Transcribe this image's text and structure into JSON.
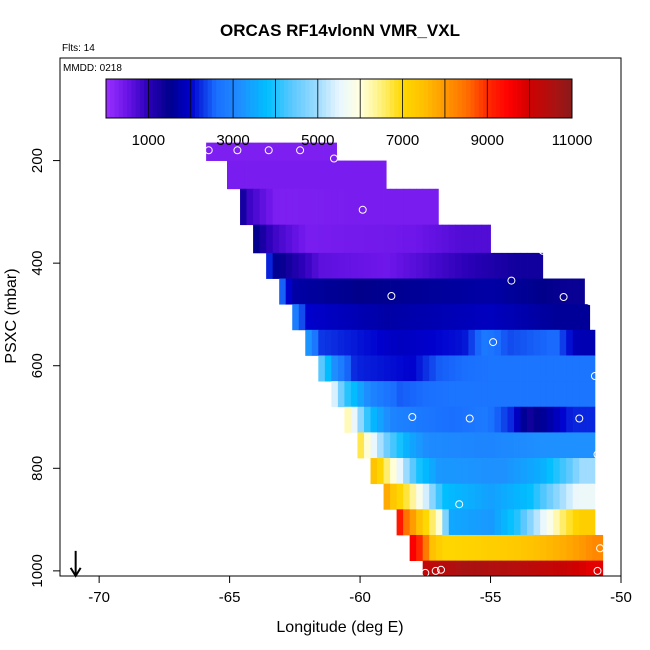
{
  "chart_data": {
    "type": "heatmap",
    "title": "ORCAS RF14vlonN VMR_VXL",
    "annotations": {
      "flights": "Flts: 14",
      "date": "MMDD: 0218"
    },
    "xlabel": "Longitude (deg E)",
    "ylabel": "PSXC (mbar)",
    "xlim": [
      -71.5,
      -50
    ],
    "ylim": [
      1010,
      0
    ],
    "x_ticks": [
      -70,
      -65,
      -60,
      -55,
      -50
    ],
    "x_tick_labels": [
      "-70",
      "-65",
      "-60",
      "-55",
      "-50"
    ],
    "y_ticks": [
      200,
      400,
      600,
      800,
      1000
    ],
    "y_tick_labels": [
      "200",
      "400",
      "600",
      "800",
      "1000"
    ],
    "colorbar": {
      "min": 0,
      "max": 11000,
      "ticks": [
        1000,
        3000,
        5000,
        7000,
        9000,
        11000
      ],
      "tick_labels": [
        "1000",
        "3000",
        "5000",
        "7000",
        "9000",
        "11000"
      ],
      "stops": [
        [
          0,
          "#9b30ff"
        ],
        [
          500,
          "#6a14e8"
        ],
        [
          1000,
          "#2b00b8"
        ],
        [
          1500,
          "#00008b"
        ],
        [
          2000,
          "#0000cd"
        ],
        [
          2600,
          "#1a6fff"
        ],
        [
          3200,
          "#1e90ff"
        ],
        [
          3800,
          "#00bfff"
        ],
        [
          4400,
          "#5cc8ff"
        ],
        [
          5000,
          "#9fdcff"
        ],
        [
          5500,
          "#e8f6ff"
        ],
        [
          6000,
          "#ffffe0"
        ],
        [
          6500,
          "#fff07a"
        ],
        [
          7000,
          "#ffd700"
        ],
        [
          7500,
          "#ffc000"
        ],
        [
          8000,
          "#ff9800"
        ],
        [
          8500,
          "#ff7000"
        ],
        [
          9000,
          "#ff2a00"
        ],
        [
          9500,
          "#ff0000"
        ],
        [
          10000,
          "#d00000"
        ],
        [
          10500,
          "#b01010"
        ],
        [
          11000,
          "#8b1a1a"
        ]
      ]
    },
    "rows": [
      {
        "p_top": 165,
        "p_bot": 200,
        "x0": -65.9,
        "x1": -60.9,
        "seg": [
          [
            -65.9,
            300
          ]
        ]
      },
      {
        "p_top": 200,
        "p_bot": 255,
        "x0": -65.1,
        "x1": -59.0,
        "seg": [
          [
            -65.1,
            350
          ]
        ]
      },
      {
        "p_top": 255,
        "p_bot": 325,
        "x0": -64.6,
        "x1": -57.0,
        "seg": [
          [
            -64.6,
            1500
          ],
          [
            -64.3,
            900
          ],
          [
            -63.2,
            300
          ],
          [
            -60.0,
            350
          ]
        ]
      },
      {
        "p_top": 325,
        "p_bot": 380,
        "x0": -64.1,
        "x1": -55.0,
        "seg": [
          [
            -64.1,
            1600
          ],
          [
            -63.4,
            900
          ],
          [
            -62.0,
            350
          ],
          [
            -58.0,
            450
          ],
          [
            -56.0,
            700
          ]
        ]
      },
      {
        "p_top": 380,
        "p_bot": 430,
        "x0": -63.6,
        "x1": -53.0,
        "seg": [
          [
            -63.6,
            2600
          ],
          [
            -63.3,
            1600
          ],
          [
            -61.5,
            600
          ],
          [
            -59.0,
            450
          ],
          [
            -56.5,
            900
          ],
          [
            -54.0,
            1300
          ]
        ]
      },
      {
        "p_top": 430,
        "p_bot": 480,
        "x0": -63.1,
        "x1": -51.4,
        "seg": [
          [
            -63.1,
            2800
          ],
          [
            -62.6,
            1700
          ],
          [
            -60.0,
            1500
          ],
          [
            -55.0,
            1700
          ],
          [
            -52.0,
            1400
          ]
        ]
      },
      {
        "p_top": 480,
        "p_bot": 530,
        "x0": -62.6,
        "x1": -51.2,
        "seg": [
          [
            -62.6,
            3100
          ],
          [
            -62.0,
            2000
          ],
          [
            -59.0,
            1700
          ],
          [
            -55.0,
            1900
          ],
          [
            -52.5,
            1600
          ]
        ]
      },
      {
        "p_top": 530,
        "p_bot": 580,
        "x0": -62.1,
        "x1": -51.0,
        "seg": [
          [
            -62.1,
            3500
          ],
          [
            -61.5,
            2300
          ],
          [
            -58.5,
            1900
          ],
          [
            -56.0,
            2100
          ],
          [
            -55.2,
            2800
          ],
          [
            -54.3,
            2400
          ],
          [
            -52.5,
            2600
          ],
          [
            -51.7,
            1800
          ]
        ]
      },
      {
        "p_top": 580,
        "p_bot": 630,
        "x0": -61.6,
        "x1": -51.0,
        "seg": [
          [
            -61.6,
            4700
          ],
          [
            -61.0,
            3200
          ],
          [
            -60.2,
            2200
          ],
          [
            -58.0,
            2000
          ],
          [
            -57.0,
            2500
          ],
          [
            -55.0,
            2700
          ]
        ]
      },
      {
        "p_top": 630,
        "p_bot": 680,
        "x0": -61.1,
        "x1": -51.0,
        "seg": [
          [
            -61.1,
            5800
          ],
          [
            -60.6,
            4200
          ],
          [
            -59.6,
            3000
          ],
          [
            -58.5,
            2500
          ],
          [
            -56.5,
            2700
          ]
        ]
      },
      {
        "p_top": 680,
        "p_bot": 730,
        "x0": -60.6,
        "x1": -51.0,
        "seg": [
          [
            -60.6,
            6500
          ],
          [
            -60.2,
            5500
          ],
          [
            -59.6,
            3800
          ],
          [
            -58.8,
            3000
          ],
          [
            -57.8,
            2800
          ],
          [
            -56.5,
            2600
          ],
          [
            -55.2,
            2800
          ],
          [
            -54.2,
            2200
          ],
          [
            -53.5,
            1300
          ],
          [
            -51.9,
            2200
          ]
        ]
      },
      {
        "p_top": 730,
        "p_bot": 780,
        "x0": -60.1,
        "x1": -51.0,
        "seg": [
          [
            -60.1,
            7000
          ],
          [
            -59.7,
            6000
          ],
          [
            -59.0,
            4600
          ],
          [
            -58.2,
            3600
          ],
          [
            -57.4,
            3100
          ],
          [
            -55.0,
            3000
          ],
          [
            -53.0,
            3200
          ]
        ]
      },
      {
        "p_top": 780,
        "p_bot": 830,
        "x0": -59.6,
        "x1": -51.0,
        "seg": [
          [
            -59.6,
            7600
          ],
          [
            -59.2,
            7000
          ],
          [
            -58.6,
            5800
          ],
          [
            -57.8,
            4000
          ],
          [
            -57.0,
            3300
          ],
          [
            -54.5,
            3200
          ],
          [
            -53.0,
            3600
          ],
          [
            -52.0,
            4400
          ],
          [
            -51.5,
            5000
          ]
        ]
      },
      {
        "p_top": 830,
        "p_bot": 880,
        "x0": -59.1,
        "x1": -51.0,
        "seg": [
          [
            -59.1,
            8000
          ],
          [
            -58.7,
            7300
          ],
          [
            -58.1,
            6600
          ],
          [
            -57.4,
            5200
          ],
          [
            -56.8,
            3800
          ],
          [
            -55.0,
            3400
          ],
          [
            -53.5,
            3800
          ],
          [
            -52.5,
            4800
          ],
          [
            -51.7,
            5600
          ]
        ]
      },
      {
        "p_top": 880,
        "p_bot": 930,
        "x0": -58.6,
        "x1": -51.0,
        "seg": [
          [
            -58.6,
            9600
          ],
          [
            -58.2,
            8400
          ],
          [
            -57.6,
            7200
          ],
          [
            -57.0,
            6200
          ],
          [
            -56.5,
            3500
          ],
          [
            -55.0,
            3300
          ],
          [
            -54.0,
            4000
          ],
          [
            -53.0,
            5500
          ],
          [
            -52.3,
            6500
          ],
          [
            -51.6,
            7200
          ]
        ]
      },
      {
        "p_top": 930,
        "p_bot": 980,
        "x0": -58.1,
        "x1": -50.7,
        "seg": [
          [
            -58.1,
            9800
          ],
          [
            -57.6,
            8800
          ],
          [
            -57.2,
            7400
          ],
          [
            -56.7,
            7000
          ],
          [
            -54.0,
            7300
          ],
          [
            -52.0,
            7800
          ],
          [
            -51.0,
            8200
          ]
        ]
      },
      {
        "p_top": 980,
        "p_bot": 1010,
        "x0": -57.6,
        "x1": -50.7,
        "seg": [
          [
            -57.6,
            10200
          ],
          [
            -56.0,
            10600
          ],
          [
            -54.0,
            10400
          ],
          [
            -52.0,
            10100
          ],
          [
            -51.2,
            9800
          ]
        ]
      }
    ],
    "points": [
      [
        -65.8,
        180
      ],
      [
        -64.7,
        180
      ],
      [
        -63.5,
        180
      ],
      [
        -62.3,
        180
      ],
      [
        -61.0,
        196
      ],
      [
        -59.9,
        296
      ],
      [
        -53.0,
        376
      ],
      [
        -54.2,
        434
      ],
      [
        -58.8,
        464
      ],
      [
        -52.2,
        466
      ],
      [
        -51.2,
        474
      ],
      [
        -54.9,
        554
      ],
      [
        -51.0,
        620
      ],
      [
        -58.0,
        700
      ],
      [
        -55.8,
        703
      ],
      [
        -51.6,
        703
      ],
      [
        -50.9,
        773
      ],
      [
        -56.2,
        870
      ],
      [
        -50.8,
        956
      ],
      [
        -56.9,
        998
      ],
      [
        -57.1,
        1000
      ],
      [
        -57.5,
        1004
      ],
      [
        -50.9,
        1000
      ]
    ],
    "arrow": {
      "x": -70.9,
      "p": 1000
    }
  }
}
